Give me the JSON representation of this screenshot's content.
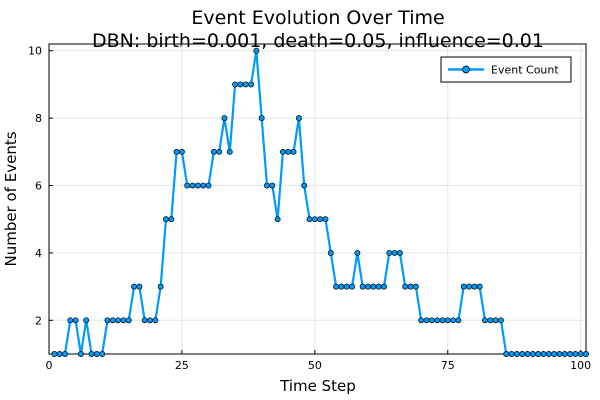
{
  "chart_data": {
    "type": "line",
    "title": "Event Evolution Over Time",
    "subtitle": "DBN: birth=0.001, death=0.05, influence=0.01",
    "xlabel": "Time Step",
    "ylabel": "Number of Events",
    "xlim": [
      0,
      101
    ],
    "ylim": [
      1,
      10.2
    ],
    "xticks": [
      0,
      25,
      50,
      75,
      100
    ],
    "yticks": [
      2,
      4,
      6,
      8,
      10
    ],
    "grid": true,
    "legend_position": "top-right",
    "colors": {
      "series": "#009AFA",
      "marker_edge": "#000000",
      "grid": "#E6E6E6"
    },
    "series": [
      {
        "name": "Event Count",
        "x": [
          1,
          2,
          3,
          4,
          5,
          6,
          7,
          8,
          9,
          10,
          11,
          12,
          13,
          14,
          15,
          16,
          17,
          18,
          19,
          20,
          21,
          22,
          23,
          24,
          25,
          26,
          27,
          28,
          29,
          30,
          31,
          32,
          33,
          34,
          35,
          36,
          37,
          38,
          39,
          40,
          41,
          42,
          43,
          44,
          45,
          46,
          47,
          48,
          49,
          50,
          51,
          52,
          53,
          54,
          55,
          56,
          57,
          58,
          59,
          60,
          61,
          62,
          63,
          64,
          65,
          66,
          67,
          68,
          69,
          70,
          71,
          72,
          73,
          74,
          75,
          76,
          77,
          78,
          79,
          80,
          81,
          82,
          83,
          84,
          85,
          86,
          87,
          88,
          89,
          90,
          91,
          92,
          93,
          94,
          95,
          96,
          97,
          98,
          99,
          100,
          101
        ],
        "values": [
          1,
          1,
          1,
          2,
          2,
          1,
          2,
          1,
          1,
          1,
          2,
          2,
          2,
          2,
          2,
          3,
          3,
          2,
          2,
          2,
          3,
          5,
          5,
          7,
          7,
          6,
          6,
          6,
          6,
          6,
          7,
          7,
          8,
          7,
          9,
          9,
          9,
          9,
          10,
          8,
          6,
          6,
          5,
          7,
          7,
          7,
          8,
          6,
          5,
          5,
          5,
          5,
          4,
          3,
          3,
          3,
          3,
          4,
          3,
          3,
          3,
          3,
          3,
          4,
          4,
          4,
          3,
          3,
          3,
          2,
          2,
          2,
          2,
          2,
          2,
          2,
          2,
          3,
          3,
          3,
          3,
          2,
          2,
          2,
          2,
          1,
          1,
          1,
          1,
          1,
          1,
          1,
          1,
          1,
          1,
          1,
          1,
          1,
          1,
          1,
          1
        ]
      }
    ]
  }
}
